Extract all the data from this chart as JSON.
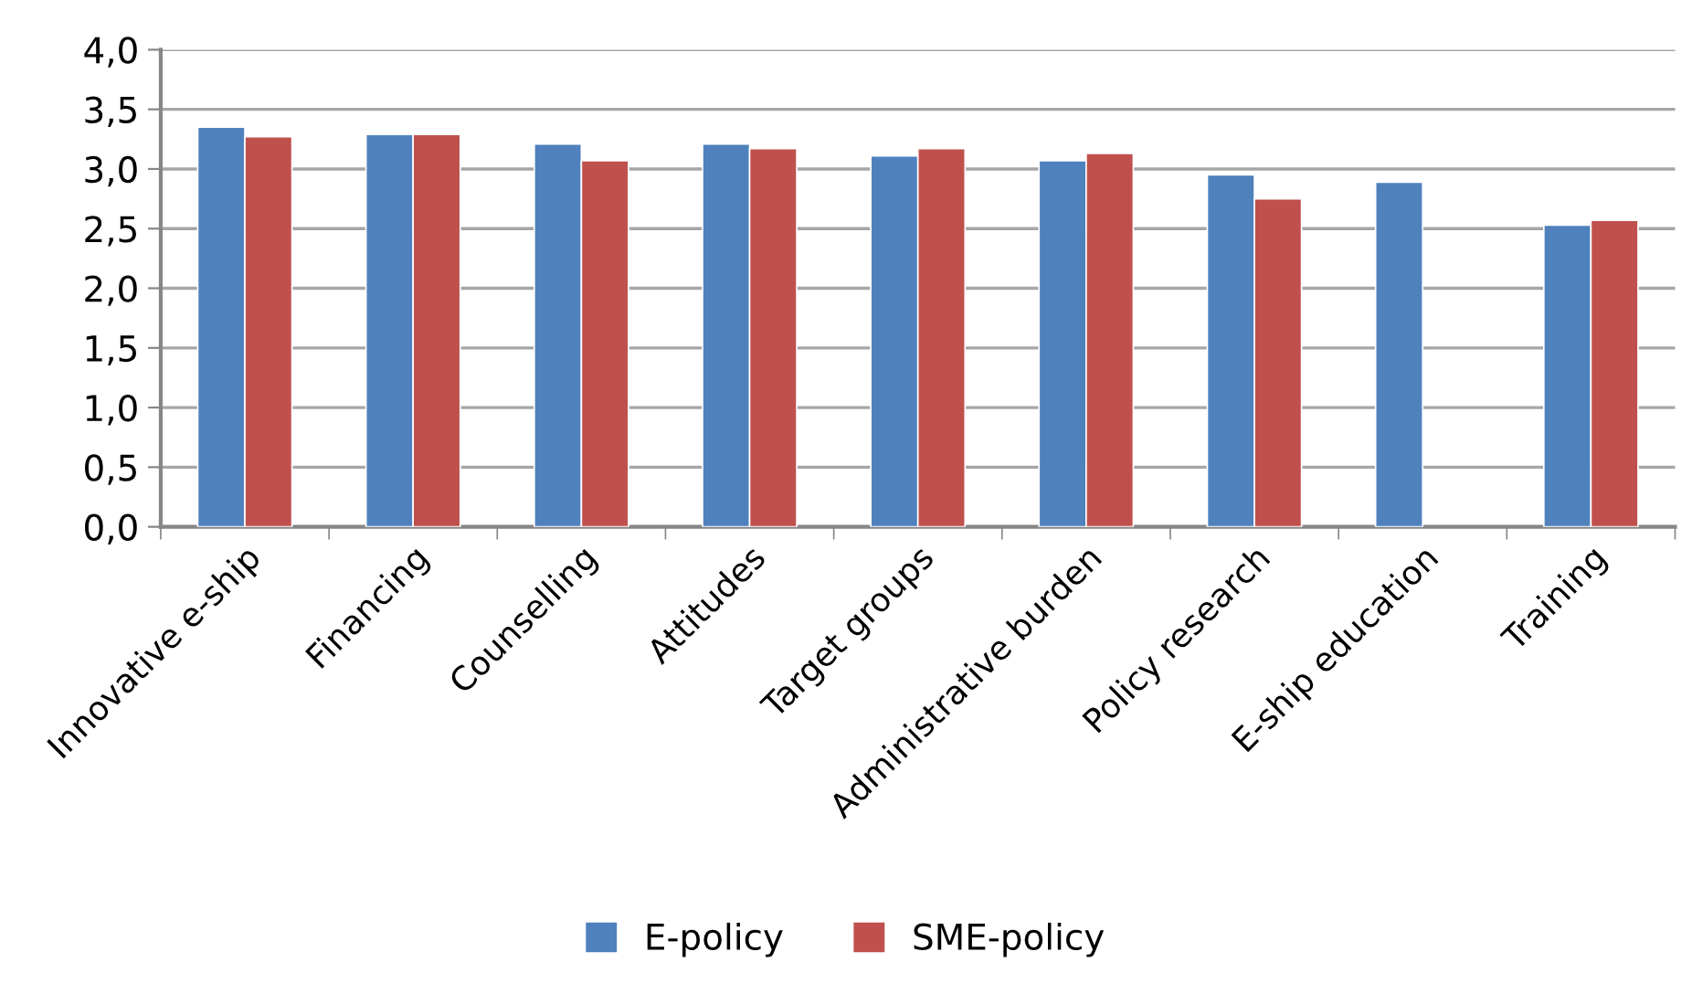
{
  "chart_data": {
    "type": "bar",
    "categories": [
      "Innovative e-ship",
      "Financing",
      "Counselling",
      "Attitudes",
      "Target groups",
      "Administrative burden",
      "Policy research",
      "E-ship education",
      "Training"
    ],
    "series": [
      {
        "name": "E-policy",
        "color": "#4f81bd",
        "values": [
          3.35,
          3.29,
          3.21,
          3.21,
          3.11,
          3.07,
          2.95,
          2.89,
          2.53
        ]
      },
      {
        "name": "SME-policy",
        "color": "#c0504d",
        "values": [
          3.27,
          3.29,
          3.07,
          3.17,
          3.17,
          3.13,
          2.75,
          null,
          2.57
        ]
      }
    ],
    "ylim": [
      0,
      4
    ],
    "yticks": [
      {
        "value": 0,
        "label": "0,0"
      },
      {
        "value": 0.5,
        "label": "0,5"
      },
      {
        "value": 1,
        "label": "1,0"
      },
      {
        "value": 1.5,
        "label": "1,5"
      },
      {
        "value": 2,
        "label": "2,0"
      },
      {
        "value": 2.5,
        "label": "2,5"
      },
      {
        "value": 3,
        "label": "3,0"
      },
      {
        "value": 3.5,
        "label": "3,5"
      },
      {
        "value": 4,
        "label": "4,0"
      }
    ],
    "grid": "y",
    "legend": "bottom"
  }
}
